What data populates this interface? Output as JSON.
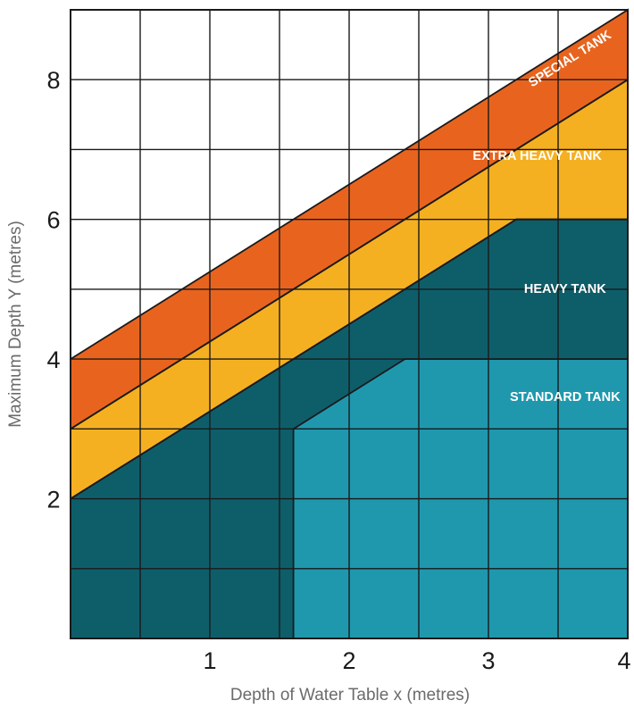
{
  "chart_data": {
    "type": "area",
    "title": "",
    "xlabel": "Depth of Water Table x (metres)",
    "ylabel": "Maximum Depth Y (metres)",
    "xlim": [
      0,
      4
    ],
    "ylim": [
      0,
      9
    ],
    "x_ticks": [
      "1",
      "2",
      "3",
      "4"
    ],
    "y_ticks": [
      "2",
      "4",
      "6",
      "8"
    ],
    "x_tick_values": [
      1,
      2,
      3,
      4
    ],
    "y_tick_values": [
      2,
      4,
      6,
      8
    ],
    "grid": true,
    "grid_step_x": 0.5,
    "grid_step_y": 1,
    "regions": [
      {
        "name": "SPECIAL TANK",
        "color": "#E8641E",
        "boundary": [
          [
            0,
            4
          ],
          [
            4,
            9
          ],
          [
            4,
            8
          ],
          [
            0,
            3
          ]
        ]
      },
      {
        "name": "EXTRA HEAVY TANK",
        "color": "#F5B021",
        "boundary": [
          [
            0,
            3
          ],
          [
            4,
            8
          ],
          [
            4,
            6
          ],
          [
            3.2,
            6
          ],
          [
            0,
            2
          ]
        ]
      },
      {
        "name": "HEAVY TANK",
        "color": "#0E5E6A",
        "boundary": [
          [
            0,
            2
          ],
          [
            3.2,
            6
          ],
          [
            4,
            6
          ],
          [
            4,
            0
          ],
          [
            0,
            0
          ]
        ]
      },
      {
        "name": "STANDARD TANK",
        "color": "#1F98AE",
        "boundary": [
          [
            1.6,
            0
          ],
          [
            1.6,
            3
          ],
          [
            2.4,
            4
          ],
          [
            4,
            4
          ],
          [
            4,
            0
          ]
        ]
      }
    ]
  }
}
